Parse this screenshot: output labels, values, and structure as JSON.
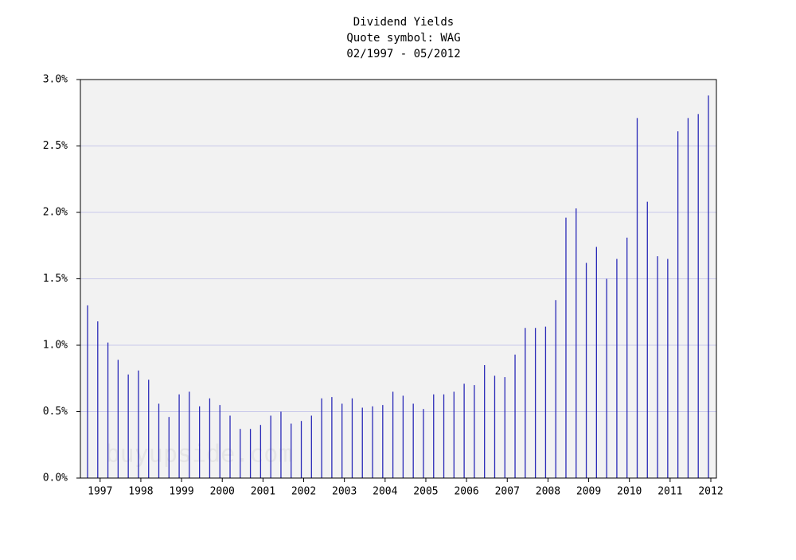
{
  "chart_data": {
    "type": "bar",
    "title": "Dividend Yields",
    "subtitle": "Quote symbol: WAG",
    "date_range": "02/1997 - 05/2012",
    "watermark": "buyupside.com",
    "color": "#2a2ab8",
    "grid": true,
    "ylim": [
      0,
      3
    ],
    "yticks": [
      {
        "value": 0,
        "label": "0.0%"
      },
      {
        "value": 0.5,
        "label": "0.5%"
      },
      {
        "value": 1,
        "label": "1.0%"
      },
      {
        "value": 1.5,
        "label": "1.5%"
      },
      {
        "value": 2,
        "label": "2.0%"
      },
      {
        "value": 2.5,
        "label": "2.5%"
      },
      {
        "value": 3,
        "label": "3.0%"
      }
    ],
    "categories": [
      null,
      "1997",
      null,
      null,
      null,
      "1998",
      null,
      null,
      null,
      "1999",
      null,
      null,
      null,
      "2000",
      null,
      null,
      null,
      "2001",
      null,
      null,
      null,
      "2002",
      null,
      null,
      null,
      "2003",
      null,
      null,
      null,
      "2004",
      null,
      null,
      null,
      "2005",
      null,
      null,
      null,
      "2006",
      null,
      null,
      null,
      "2007",
      null,
      null,
      null,
      "2008",
      null,
      null,
      null,
      "2009",
      null,
      null,
      null,
      "2010",
      null,
      null,
      null,
      "2011",
      null,
      null,
      null,
      "2012"
    ],
    "values": [
      1.3,
      1.18,
      1.02,
      0.89,
      0.78,
      0.81,
      0.74,
      0.56,
      0.46,
      0.63,
      0.65,
      0.54,
      0.6,
      0.55,
      0.47,
      0.37,
      0.37,
      0.4,
      0.47,
      0.5,
      0.41,
      0.43,
      0.47,
      0.6,
      0.61,
      0.56,
      0.6,
      0.53,
      0.54,
      0.55,
      0.65,
      0.62,
      0.56,
      0.52,
      0.63,
      0.63,
      0.65,
      0.71,
      0.7,
      0.85,
      0.77,
      0.76,
      0.93,
      1.13,
      1.13,
      1.14,
      1.34,
      1.96,
      2.03,
      1.62,
      1.74,
      1.5,
      1.65,
      1.81,
      2.71,
      2.08,
      1.67,
      1.65,
      2.61,
      2.71,
      2.74,
      2.88
    ]
  }
}
